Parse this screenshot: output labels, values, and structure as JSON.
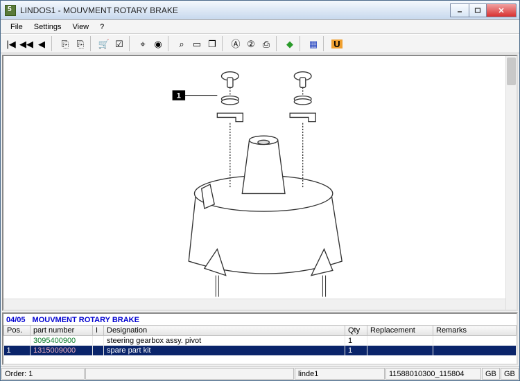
{
  "window": {
    "title": "LINDOS1 - MOUVMENT ROTARY BRAKE"
  },
  "menubar": {
    "file": "File",
    "settings": "Settings",
    "view": "View",
    "help": "?"
  },
  "toolbar_icons": {
    "first": "|◀",
    "rew": "◀◀",
    "prev": "◀",
    "copy1": "⎘",
    "copy2": "⎘",
    "cart": "🛒",
    "check": "☑",
    "globe1": "⌖",
    "globe2": "◉",
    "zoom": "⌕",
    "doc": "▭",
    "page": "❐",
    "circA": "Ⓐ",
    "circ2": "②",
    "print": "⎙",
    "green": "◆",
    "blue": "▦",
    "u": "U"
  },
  "diagram": {
    "callout": "1"
  },
  "table": {
    "heading_code": "04/05",
    "heading_title": "MOUVMENT ROTARY BRAKE",
    "columns": {
      "pos": "Pos.",
      "pn": "part number",
      "i": "I",
      "desig": "Designation",
      "qty": "Qty",
      "repl": "Replacement",
      "rem": "Remarks"
    },
    "rows": [
      {
        "pos": "",
        "pn": "3095400900",
        "i": "",
        "desig": "steering gearbox assy. pivot",
        "qty": "1",
        "repl": "",
        "rem": "",
        "pn_class": "pn-green"
      },
      {
        "pos": "1",
        "pn": "1315009000",
        "i": "",
        "desig": "spare part kit",
        "qty": "1",
        "repl": "",
        "rem": "",
        "pn_class": "pn-red"
      }
    ]
  },
  "statusbar": {
    "order_label": "Order:",
    "order_val": "1",
    "user": "linde1",
    "code": "11588010300_115804",
    "loc1": "GB",
    "loc2": "GB"
  },
  "colors": {
    "accent": "#0000d0",
    "sel_bg": "#0a246a",
    "close": "#d83030"
  }
}
